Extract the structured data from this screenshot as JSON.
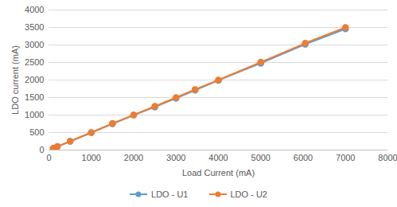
{
  "chart_data": {
    "type": "line",
    "x_label": "Load Current (mA)",
    "y_label": "LDO current (mA)",
    "x": [
      100,
      200,
      500,
      1000,
      1500,
      2000,
      2500,
      3000,
      3450,
      4000,
      5000,
      6050,
      7000
    ],
    "series": [
      {
        "name": "LDO - U1",
        "color": "#5b9bd5",
        "marker": "circle",
        "line_style": "solid",
        "values": [
          50,
          100,
          250,
          500,
          750,
          1000,
          1230,
          1480,
          1710,
          1990,
          2480,
          3020,
          3460
        ]
      },
      {
        "name": "LDO - U2",
        "color": "#ed7d31",
        "marker": "circle",
        "line_style": "solid",
        "values": [
          50,
          100,
          250,
          500,
          760,
          1000,
          1250,
          1500,
          1730,
          2000,
          2510,
          3050,
          3500
        ]
      }
    ],
    "xlim": [
      0,
      8000
    ],
    "xticks": [
      0,
      1000,
      2000,
      3000,
      4000,
      5000,
      6000,
      7000,
      8000
    ],
    "ylim": [
      0,
      4000
    ],
    "yticks": [
      0,
      500,
      1000,
      1500,
      2000,
      2500,
      3000,
      3500,
      4000
    ],
    "grid": true,
    "legend": "bottom"
  }
}
